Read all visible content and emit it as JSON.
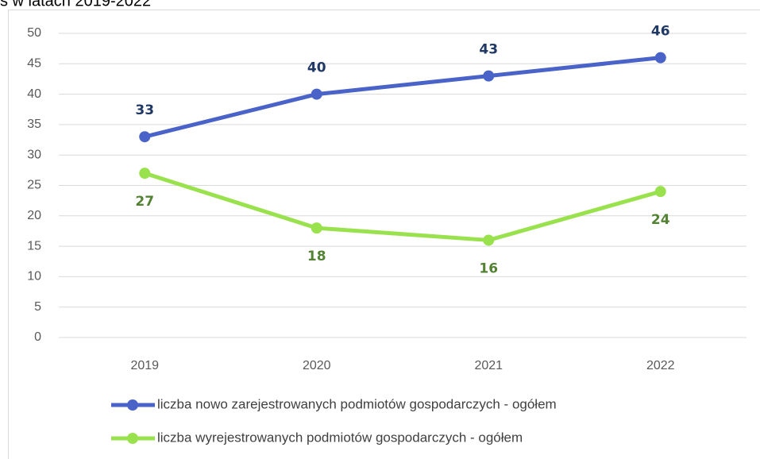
{
  "chart_data": {
    "type": "line",
    "title": "s w latach 2019-2022",
    "categories": [
      "2019",
      "2020",
      "2021",
      "2022"
    ],
    "series": [
      {
        "name": "liczba nowo zarejestrowanych podmiotów gospodarczych - ogółem",
        "color": "#4a63c9",
        "label_color": "#1f3864",
        "label_position": "above",
        "values": [
          33,
          40,
          43,
          46
        ]
      },
      {
        "name": "liczba wyrejestrowanych podmiotów gospodarczych - ogółem",
        "color": "#99e24d",
        "label_color": "#548235",
        "label_position": "below",
        "values": [
          27,
          18,
          16,
          24
        ]
      }
    ],
    "ylim": [
      0,
      50
    ],
    "yticks": [
      0,
      5,
      10,
      15,
      20,
      25,
      30,
      35,
      40,
      45,
      50
    ],
    "grid": true,
    "legend": "bottom"
  }
}
